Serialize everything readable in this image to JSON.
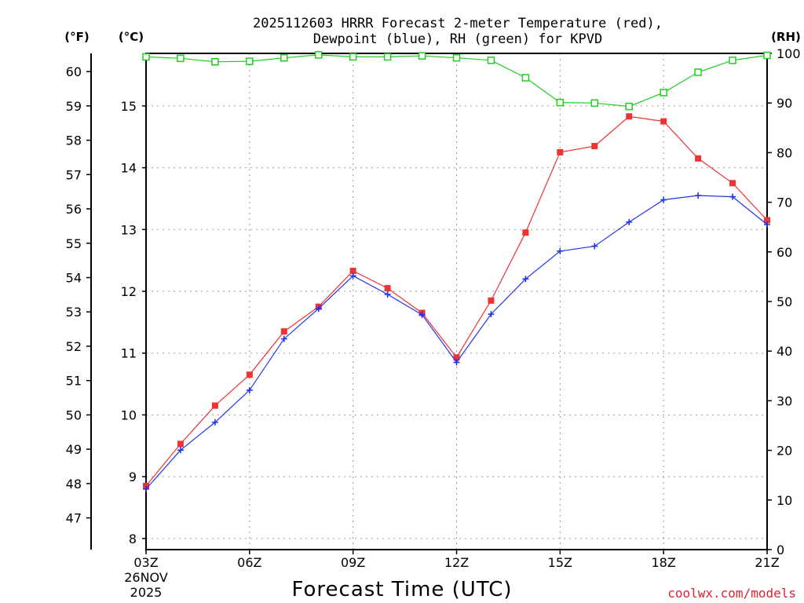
{
  "chart_data": {
    "type": "line",
    "title_line1": "2025112603 HRRR Forecast 2-meter Temperature (red),",
    "title_line2": "Dewpoint (blue), RH (green) for KPVD",
    "xlabel": "Forecast Time (UTC)",
    "axis_units": {
      "fahrenheit": "(°F)",
      "celsius": "(°C)",
      "rh": "(RH)"
    },
    "x_tick_labels": [
      "03Z",
      "06Z",
      "09Z",
      "12Z",
      "15Z",
      "18Z",
      "21Z"
    ],
    "x_date_line1": "26NOV",
    "x_date_line2": "2025",
    "x_hours": [
      3,
      4,
      5,
      6,
      7,
      8,
      9,
      10,
      11,
      12,
      13,
      14,
      15,
      16,
      17,
      18,
      19,
      20,
      21
    ],
    "celsius_ticks": [
      "8",
      "9",
      "10",
      "11",
      "12",
      "13",
      "14",
      "15"
    ],
    "fahrenheit_ticks": [
      "47",
      "48",
      "49",
      "50",
      "51",
      "52",
      "53",
      "54",
      "55",
      "56",
      "57",
      "58",
      "59",
      "60"
    ],
    "rh_ticks": [
      "0",
      "10",
      "20",
      "30",
      "40",
      "50",
      "60",
      "70",
      "80",
      "90",
      "100"
    ],
    "celsius_range": [
      7.82,
      15.85
    ],
    "rh_range": [
      0,
      100
    ],
    "series": [
      {
        "name": "Temperature",
        "unit": "C",
        "color": "#ee3333",
        "marker": "filled-square",
        "values": [
          8.85,
          9.53,
          10.15,
          10.65,
          11.35,
          11.75,
          12.33,
          12.05,
          11.65,
          10.93,
          11.85,
          12.95,
          14.25,
          14.35,
          14.83,
          14.75,
          14.15,
          13.75,
          13.15
        ]
      },
      {
        "name": "Dewpoint",
        "unit": "C",
        "color": "#2233ee",
        "marker": "plus",
        "values": [
          8.8,
          9.43,
          9.88,
          10.4,
          11.23,
          11.72,
          12.25,
          11.95,
          11.62,
          10.85,
          11.63,
          12.2,
          12.65,
          12.73,
          13.12,
          13.48,
          13.55,
          13.53,
          13.08
        ]
      },
      {
        "name": "RH",
        "unit": "%",
        "color": "#22cc22",
        "marker": "open-square",
        "values": [
          99.3,
          99.0,
          98.3,
          98.4,
          99.1,
          99.7,
          99.3,
          99.3,
          99.5,
          99.1,
          98.6,
          95.1,
          90.1,
          90.0,
          89.3,
          92.1,
          96.2,
          98.6,
          99.6
        ]
      }
    ],
    "credit": "coolwx.com/models",
    "credit_color": "#dd2233"
  }
}
